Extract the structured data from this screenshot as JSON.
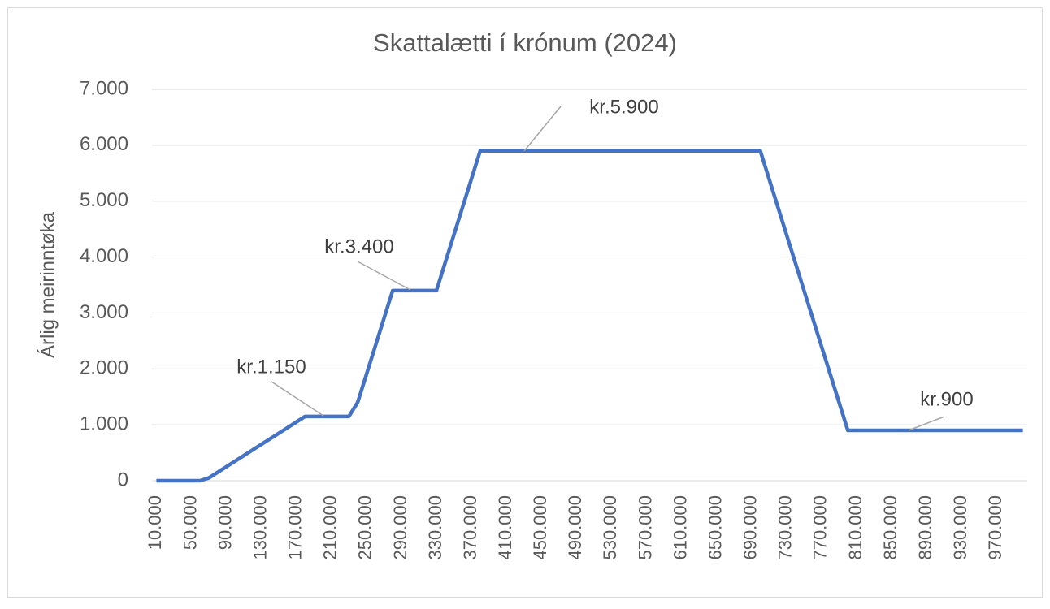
{
  "chart_data": {
    "type": "line",
    "title": "Skattalætti í krónum (2024)",
    "y_label": "Árlig meirinntøka",
    "categories": [
      "10.000",
      null,
      null,
      null,
      "50.000",
      null,
      null,
      null,
      "90.000",
      null,
      null,
      null,
      "130.000",
      null,
      null,
      null,
      "170.000",
      null,
      null,
      null,
      "210.000",
      null,
      null,
      null,
      "250.000",
      null,
      null,
      null,
      "290.000",
      null,
      null,
      null,
      "330.000",
      null,
      null,
      null,
      "370.000",
      null,
      null,
      null,
      "410.000",
      null,
      null,
      null,
      "450.000",
      null,
      null,
      null,
      "490.000",
      null,
      null,
      null,
      "530.000",
      null,
      null,
      null,
      "570.000",
      null,
      null,
      null,
      "610.000",
      null,
      null,
      null,
      "650.000",
      null,
      null,
      null,
      "690.000",
      null,
      null,
      null,
      "730.000",
      null,
      null,
      null,
      "770.000",
      null,
      null,
      null,
      "810.000",
      null,
      null,
      null,
      "850.000",
      null,
      null,
      null,
      "890.000",
      null,
      null,
      null,
      "930.000",
      null,
      null,
      null,
      "970.000",
      null,
      null,
      null
    ],
    "values": [
      0,
      0,
      0,
      0,
      0,
      0,
      50,
      150,
      250,
      350,
      450,
      550,
      650,
      750,
      850,
      950,
      1050,
      1150,
      1150,
      1150,
      1150,
      1150,
      1150,
      1400,
      1900,
      2400,
      2900,
      3400,
      3400,
      3400,
      3400,
      3400,
      3400,
      3900,
      4400,
      4900,
      5400,
      5900,
      5900,
      5900,
      5900,
      5900,
      5900,
      5900,
      5900,
      5900,
      5900,
      5900,
      5900,
      5900,
      5900,
      5900,
      5900,
      5900,
      5900,
      5900,
      5900,
      5900,
      5900,
      5900,
      5900,
      5900,
      5900,
      5900,
      5900,
      5900,
      5900,
      5900,
      5900,
      5900,
      5400,
      4900,
      4400,
      3900,
      3400,
      2900,
      2400,
      1900,
      1400,
      900,
      900,
      900,
      900,
      900,
      900,
      900,
      900,
      900,
      900,
      900,
      900,
      900,
      900,
      900,
      900,
      900,
      900,
      900,
      900,
      900
    ],
    "color": "#4472c4",
    "ylim": [
      0,
      7000
    ],
    "yticks": [
      0,
      {
        "value": 1000,
        "label": "1.000"
      },
      {
        "value": 2000,
        "label": "2.000"
      },
      {
        "value": 3000,
        "label": "3.000"
      },
      {
        "value": 4000,
        "label": "4.000"
      },
      {
        "value": 5000,
        "label": "5.000"
      },
      {
        "value": 6000,
        "label": "6.000"
      },
      {
        "value": 7000,
        "label": "7.000"
      }
    ],
    "grid": true,
    "annotations": [
      "kr.1.150",
      "kr.3.400",
      "kr.5.900",
      "kr.900"
    ]
  }
}
